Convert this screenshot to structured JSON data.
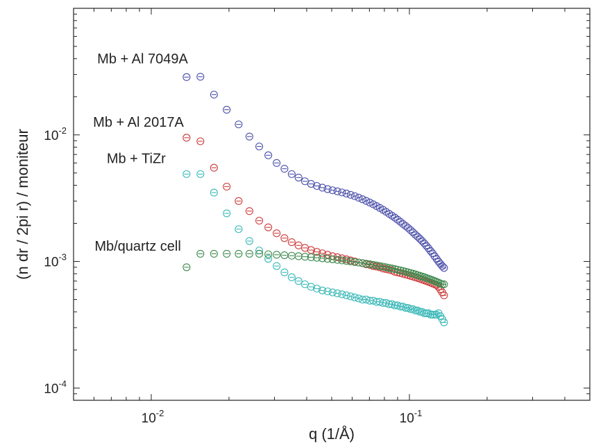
{
  "chart_data": {
    "type": "scatter",
    "title": "",
    "xlabel": "q (1/Å)",
    "ylabel": "(n dr / 2pi r) / moniteur",
    "x_scale": "log",
    "y_scale": "log",
    "xlim": [
      0.005,
      0.5
    ],
    "ylim": [
      8e-05,
      0.1
    ],
    "x_ticks": [
      {
        "base": "10",
        "exp": "-2",
        "value": 0.01
      },
      {
        "base": "10",
        "exp": "-1",
        "value": 0.1
      }
    ],
    "y_ticks": [
      {
        "base": "10",
        "exp": "-4",
        "value": 0.0001
      },
      {
        "base": "10",
        "exp": "-3",
        "value": 0.001
      },
      {
        "base": "10",
        "exp": "-2",
        "value": 0.01
      }
    ],
    "grid": false,
    "marker": "circle-with-horizontal-bar",
    "series": [
      {
        "name": "Mb + Al 7049A",
        "color": "#4a4fa8",
        "x": [
          0.0137,
          0.0155,
          0.0175,
          0.0196,
          0.0218,
          0.024,
          0.0262,
          0.0284,
          0.0306,
          0.0328,
          0.035,
          0.0372,
          0.0394,
          0.0416,
          0.0438,
          0.046,
          0.0482,
          0.0504,
          0.0526,
          0.0548,
          0.057,
          0.0592,
          0.0614,
          0.0636,
          0.0658,
          0.068,
          0.0702,
          0.0724,
          0.0746,
          0.0768,
          0.079,
          0.0812,
          0.0834,
          0.0856,
          0.0878,
          0.09,
          0.0922,
          0.0944,
          0.0966,
          0.0988,
          0.101,
          0.1032,
          0.1054,
          0.1076,
          0.1098,
          0.112,
          0.1142,
          0.1164,
          0.1186,
          0.1208,
          0.123,
          0.1252,
          0.1274,
          0.1296,
          0.1318,
          0.134,
          0.1362
        ],
        "y": [
          0.0286,
          0.0288,
          0.0208,
          0.0158,
          0.0121,
          0.0097,
          0.0081,
          0.0069,
          0.006,
          0.0054,
          0.0049,
          0.0046,
          0.0043,
          0.0041,
          0.00395,
          0.00383,
          0.00373,
          0.00365,
          0.00358,
          0.00351,
          0.00344,
          0.00336,
          0.00328,
          0.00319,
          0.0031,
          0.00301,
          0.00292,
          0.00283,
          0.00274,
          0.00265,
          0.00256,
          0.00247,
          0.00238,
          0.0023,
          0.00222,
          0.00214,
          0.00206,
          0.00198,
          0.00191,
          0.00184,
          0.00177,
          0.0017,
          0.00163,
          0.00157,
          0.00151,
          0.00145,
          0.00139,
          0.00133,
          0.00127,
          0.00121,
          0.00116,
          0.0011,
          0.00105,
          0.001,
          0.00096,
          0.00092,
          0.00089
        ]
      },
      {
        "name": "Mb + Al 2017A",
        "color": "#cc3b3b",
        "x": [
          0.0137,
          0.0155,
          0.0175,
          0.0196,
          0.0218,
          0.024,
          0.0262,
          0.0284,
          0.0306,
          0.0328,
          0.035,
          0.0372,
          0.0394,
          0.0416,
          0.0438,
          0.046,
          0.0482,
          0.0504,
          0.0526,
          0.0548,
          0.057,
          0.0592,
          0.0614,
          0.0636,
          0.0658,
          0.068,
          0.0702,
          0.0724,
          0.0746,
          0.0768,
          0.079,
          0.0812,
          0.0834,
          0.0856,
          0.0878,
          0.09,
          0.0922,
          0.0944,
          0.0966,
          0.0988,
          0.101,
          0.1032,
          0.1054,
          0.1076,
          0.1098,
          0.112,
          0.1142,
          0.1164,
          0.1186,
          0.1208,
          0.123,
          0.1252,
          0.1274,
          0.1296,
          0.1318,
          0.134,
          0.1362
        ],
        "y": [
          0.0095,
          0.0089,
          0.0055,
          0.0039,
          0.003,
          0.0025,
          0.0021,
          0.00186,
          0.00167,
          0.00153,
          0.00142,
          0.00134,
          0.00128,
          0.00123,
          0.00119,
          0.00116,
          0.00113,
          0.0011,
          0.00108,
          0.00106,
          0.00104,
          0.00102,
          0.001,
          0.00098,
          0.00097,
          0.00095,
          0.00094,
          0.00092,
          0.00091,
          0.0009,
          0.00088,
          0.00087,
          0.00086,
          0.00085,
          0.00083,
          0.00082,
          0.00081,
          0.0008,
          0.00079,
          0.00078,
          0.00077,
          0.00076,
          0.00075,
          0.00074,
          0.00073,
          0.00072,
          0.00071,
          0.0007,
          0.00069,
          0.00068,
          0.00067,
          0.00066,
          0.00065,
          0.00063,
          0.0006,
          0.00057,
          0.00054
        ]
      },
      {
        "name": "Mb + TiZr",
        "color": "#3bb8b8",
        "x": [
          0.0137,
          0.0155,
          0.0175,
          0.0196,
          0.0218,
          0.024,
          0.0262,
          0.0284,
          0.0306,
          0.0328,
          0.035,
          0.0372,
          0.0394,
          0.0416,
          0.0438,
          0.046,
          0.0482,
          0.0504,
          0.0526,
          0.0548,
          0.057,
          0.0592,
          0.0614,
          0.0636,
          0.0658,
          0.068,
          0.0702,
          0.0724,
          0.0746,
          0.0768,
          0.079,
          0.0812,
          0.0834,
          0.0856,
          0.0878,
          0.09,
          0.0922,
          0.0944,
          0.0966,
          0.0988,
          0.101,
          0.1032,
          0.1054,
          0.1076,
          0.1098,
          0.112,
          0.1142,
          0.1164,
          0.1186,
          0.1208,
          0.123,
          0.1252,
          0.1274,
          0.1296,
          0.1318,
          0.134,
          0.1362
        ],
        "y": [
          0.0049,
          0.0049,
          0.0035,
          0.0024,
          0.0018,
          0.00145,
          0.00122,
          0.00105,
          0.00092,
          0.00082,
          0.00075,
          0.0007,
          0.00066,
          0.00063,
          0.00061,
          0.00059,
          0.00058,
          0.00057,
          0.00056,
          0.00055,
          0.00054,
          0.00053,
          0.00052,
          0.00051,
          0.0005,
          0.0005,
          0.00049,
          0.00049,
          0.00048,
          0.00048,
          0.00047,
          0.00047,
          0.00046,
          0.00046,
          0.00045,
          0.00045,
          0.00044,
          0.00044,
          0.00043,
          0.00043,
          0.00042,
          0.00042,
          0.00041,
          0.00041,
          0.0004,
          0.0004,
          0.00039,
          0.00039,
          0.00039,
          0.00038,
          0.00038,
          0.00038,
          0.00038,
          0.00039,
          0.00037,
          0.00035,
          0.00033
        ]
      },
      {
        "name": "Mb/quartz cell",
        "color": "#3f8a4f",
        "x": [
          0.0137,
          0.0155,
          0.0175,
          0.0196,
          0.0218,
          0.024,
          0.0262,
          0.0284,
          0.0306,
          0.0328,
          0.035,
          0.0372,
          0.0394,
          0.0416,
          0.0438,
          0.046,
          0.0482,
          0.0504,
          0.0526,
          0.0548,
          0.057,
          0.0592,
          0.0614,
          0.0636,
          0.0658,
          0.068,
          0.0702,
          0.0724,
          0.0746,
          0.0768,
          0.079,
          0.0812,
          0.0834,
          0.0856,
          0.0878,
          0.09,
          0.0922,
          0.0944,
          0.0966,
          0.0988,
          0.101,
          0.1032,
          0.1054,
          0.1076,
          0.1098,
          0.112,
          0.1142,
          0.1164,
          0.1186,
          0.1208,
          0.123,
          0.1252,
          0.1274,
          0.1296,
          0.1318,
          0.134,
          0.1362
        ],
        "y": [
          0.0009,
          0.00115,
          0.00115,
          0.00115,
          0.00115,
          0.00115,
          0.00115,
          0.00114,
          0.00113,
          0.00112,
          0.00111,
          0.0011,
          0.00109,
          0.00108,
          0.00107,
          0.00106,
          0.00105,
          0.00104,
          0.00103,
          0.00102,
          0.00101,
          0.001,
          0.00099,
          0.00098,
          0.00097,
          0.00096,
          0.00095,
          0.00094,
          0.00093,
          0.00092,
          0.00091,
          0.0009,
          0.00089,
          0.00088,
          0.00087,
          0.00086,
          0.00085,
          0.00084,
          0.00083,
          0.00082,
          0.00081,
          0.0008,
          0.00079,
          0.00078,
          0.00077,
          0.00076,
          0.00075,
          0.00074,
          0.00073,
          0.00072,
          0.00071,
          0.0007,
          0.00069,
          0.00068,
          0.00067,
          0.00066,
          0.00066
        ]
      }
    ],
    "annotations": [
      {
        "text": "Mb + Al 7049A",
        "series": 0
      },
      {
        "text": "Mb + Al 2017A",
        "series": 1
      },
      {
        "text": "Mb + TiZr",
        "series": 2
      },
      {
        "text": "Mb/quartz cell",
        "series": 3
      }
    ]
  }
}
